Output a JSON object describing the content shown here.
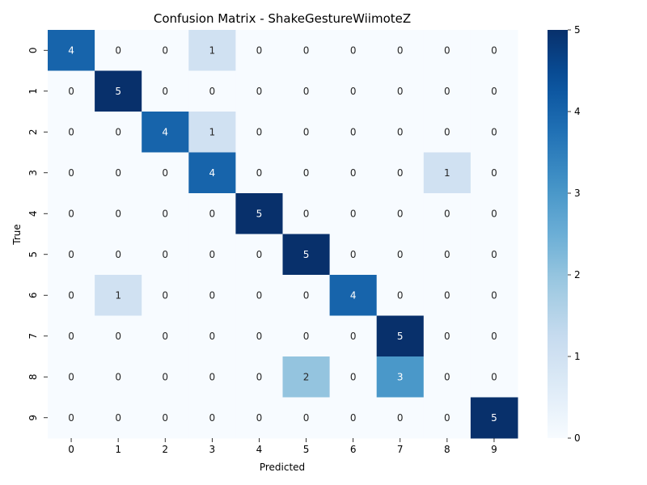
{
  "chart_data": {
    "type": "heatmap",
    "title": "Confusion Matrix - ShakeGestureWiimoteZ",
    "xlabel": "Predicted",
    "ylabel": "True",
    "x_categories": [
      "0",
      "1",
      "2",
      "3",
      "4",
      "5",
      "6",
      "7",
      "8",
      "9"
    ],
    "y_categories": [
      "0",
      "1",
      "2",
      "3",
      "4",
      "5",
      "6",
      "7",
      "8",
      "9"
    ],
    "matrix": [
      [
        4,
        0,
        0,
        1,
        0,
        0,
        0,
        0,
        0,
        0
      ],
      [
        0,
        5,
        0,
        0,
        0,
        0,
        0,
        0,
        0,
        0
      ],
      [
        0,
        0,
        4,
        1,
        0,
        0,
        0,
        0,
        0,
        0
      ],
      [
        0,
        0,
        0,
        4,
        0,
        0,
        0,
        0,
        1,
        0
      ],
      [
        0,
        0,
        0,
        0,
        5,
        0,
        0,
        0,
        0,
        0
      ],
      [
        0,
        0,
        0,
        0,
        0,
        5,
        0,
        0,
        0,
        0
      ],
      [
        0,
        1,
        0,
        0,
        0,
        0,
        4,
        0,
        0,
        0
      ],
      [
        0,
        0,
        0,
        0,
        0,
        0,
        0,
        5,
        0,
        0
      ],
      [
        0,
        0,
        0,
        0,
        0,
        2,
        0,
        3,
        0,
        0
      ],
      [
        0,
        0,
        0,
        0,
        0,
        0,
        0,
        0,
        0,
        5
      ]
    ],
    "value_range": [
      0,
      5
    ],
    "colormap": "Blues",
    "colorbar_ticks": [
      0,
      1,
      2,
      3,
      4,
      5
    ],
    "annotations": true
  }
}
